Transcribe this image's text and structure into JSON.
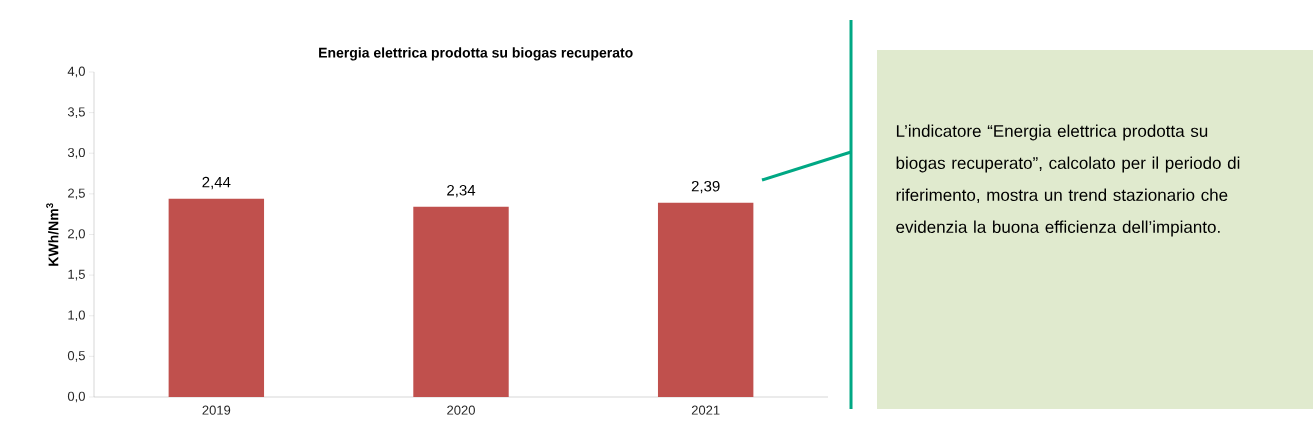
{
  "chart_data": {
    "type": "bar",
    "title": "Energia elettrica prodotta su biogas  recuperato",
    "ylabel": "KWh/Nm$^{3}$",
    "categories": [
      "2019",
      "2020",
      "2021"
    ],
    "values": [
      2.44,
      2.34,
      2.39
    ],
    "value_labels": [
      "2,44",
      "2,34",
      "2,39"
    ],
    "color": "#c0504d",
    "ylim": [
      0,
      4
    ],
    "yticks": [
      {
        "value": 0,
        "label": "0,0"
      },
      {
        "value": 0.5,
        "label": "0,5"
      },
      {
        "value": 1,
        "label": "1,0"
      },
      {
        "value": 1.5,
        "label": "1,5"
      },
      {
        "value": 2,
        "label": "2,0"
      },
      {
        "value": 2.5,
        "label": "2,5"
      },
      {
        "value": 3,
        "label": "3,0"
      },
      {
        "value": 3.5,
        "label": "3,5"
      },
      {
        "value": 4,
        "label": "4,0"
      }
    ],
    "annotations": [
      "L’indicatore “Energia elettrica prodotta su biogas recuperato”, calcolato per il periodo di riferimento, mostra un trend stazionario che evidenzia la buona efficienza dell’impianto."
    ]
  }
}
